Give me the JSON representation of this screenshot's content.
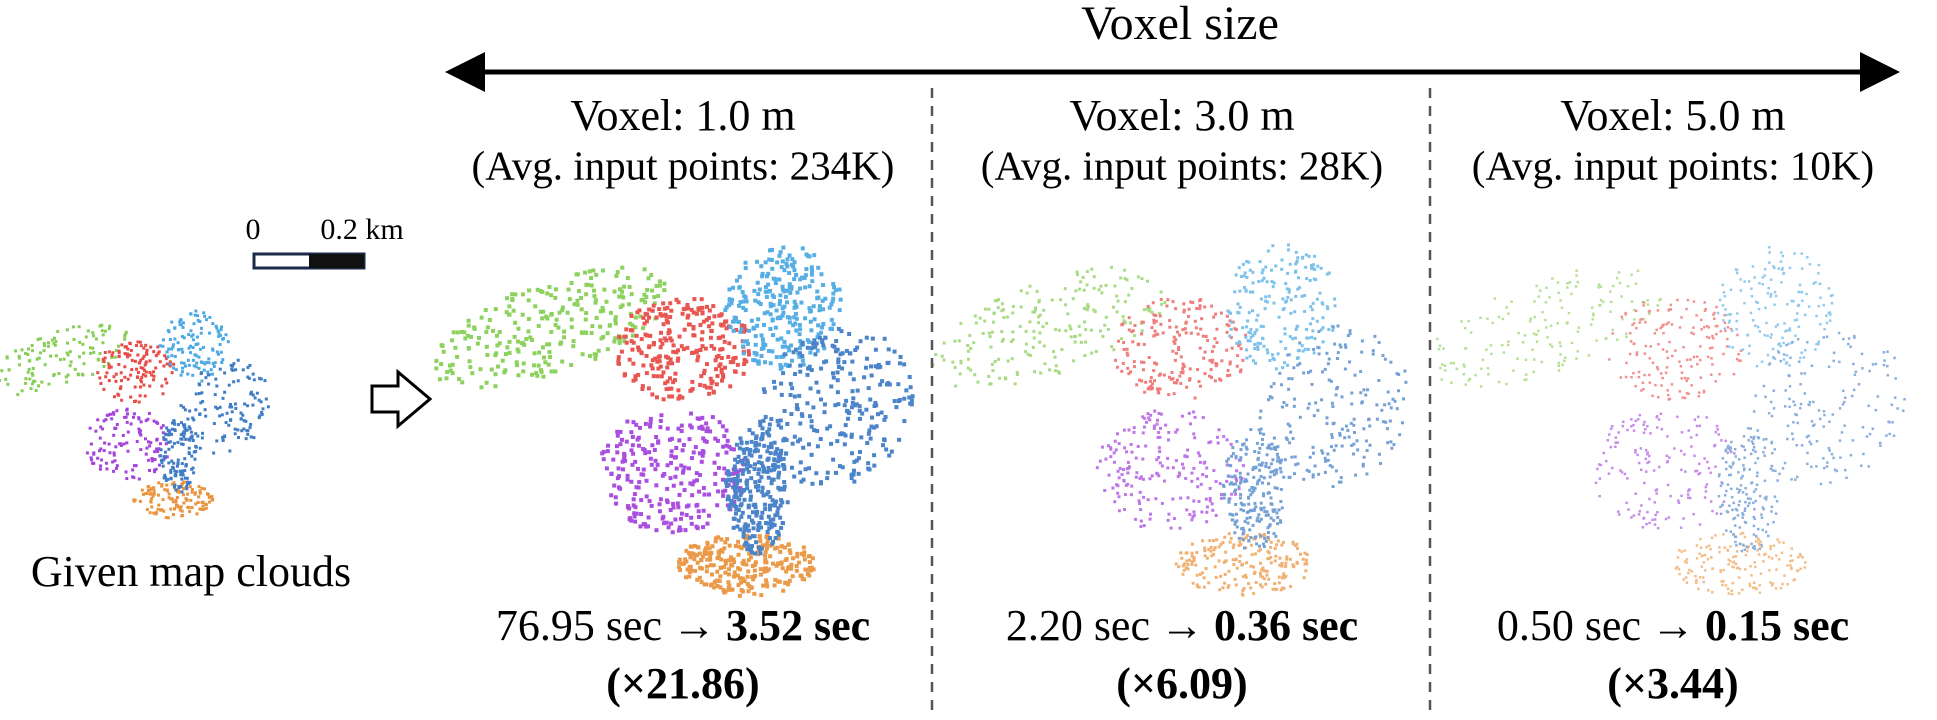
{
  "header": {
    "title": "Voxel size"
  },
  "left": {
    "scale_start": "0",
    "scale_end": "0.2 km",
    "caption": "Given map clouds"
  },
  "panels": [
    {
      "title": "Voxel: 1.0 m",
      "subtitle": "(Avg. input points: 234K)",
      "before": "76.95 sec",
      "arrow": "→",
      "after": "3.52 sec",
      "speedup": "(×21.86)"
    },
    {
      "title": "Voxel: 3.0 m",
      "subtitle": "(Avg. input points: 28K)",
      "before": "2.20 sec",
      "arrow": "→",
      "after": "0.36 sec",
      "speedup": "(×6.09)"
    },
    {
      "title": "Voxel: 5.0 m",
      "subtitle": "(Avg. input points: 10K)",
      "before": "0.50 sec",
      "arrow": "→",
      "after": "0.15 sec",
      "speedup": "(×3.44)"
    }
  ]
}
